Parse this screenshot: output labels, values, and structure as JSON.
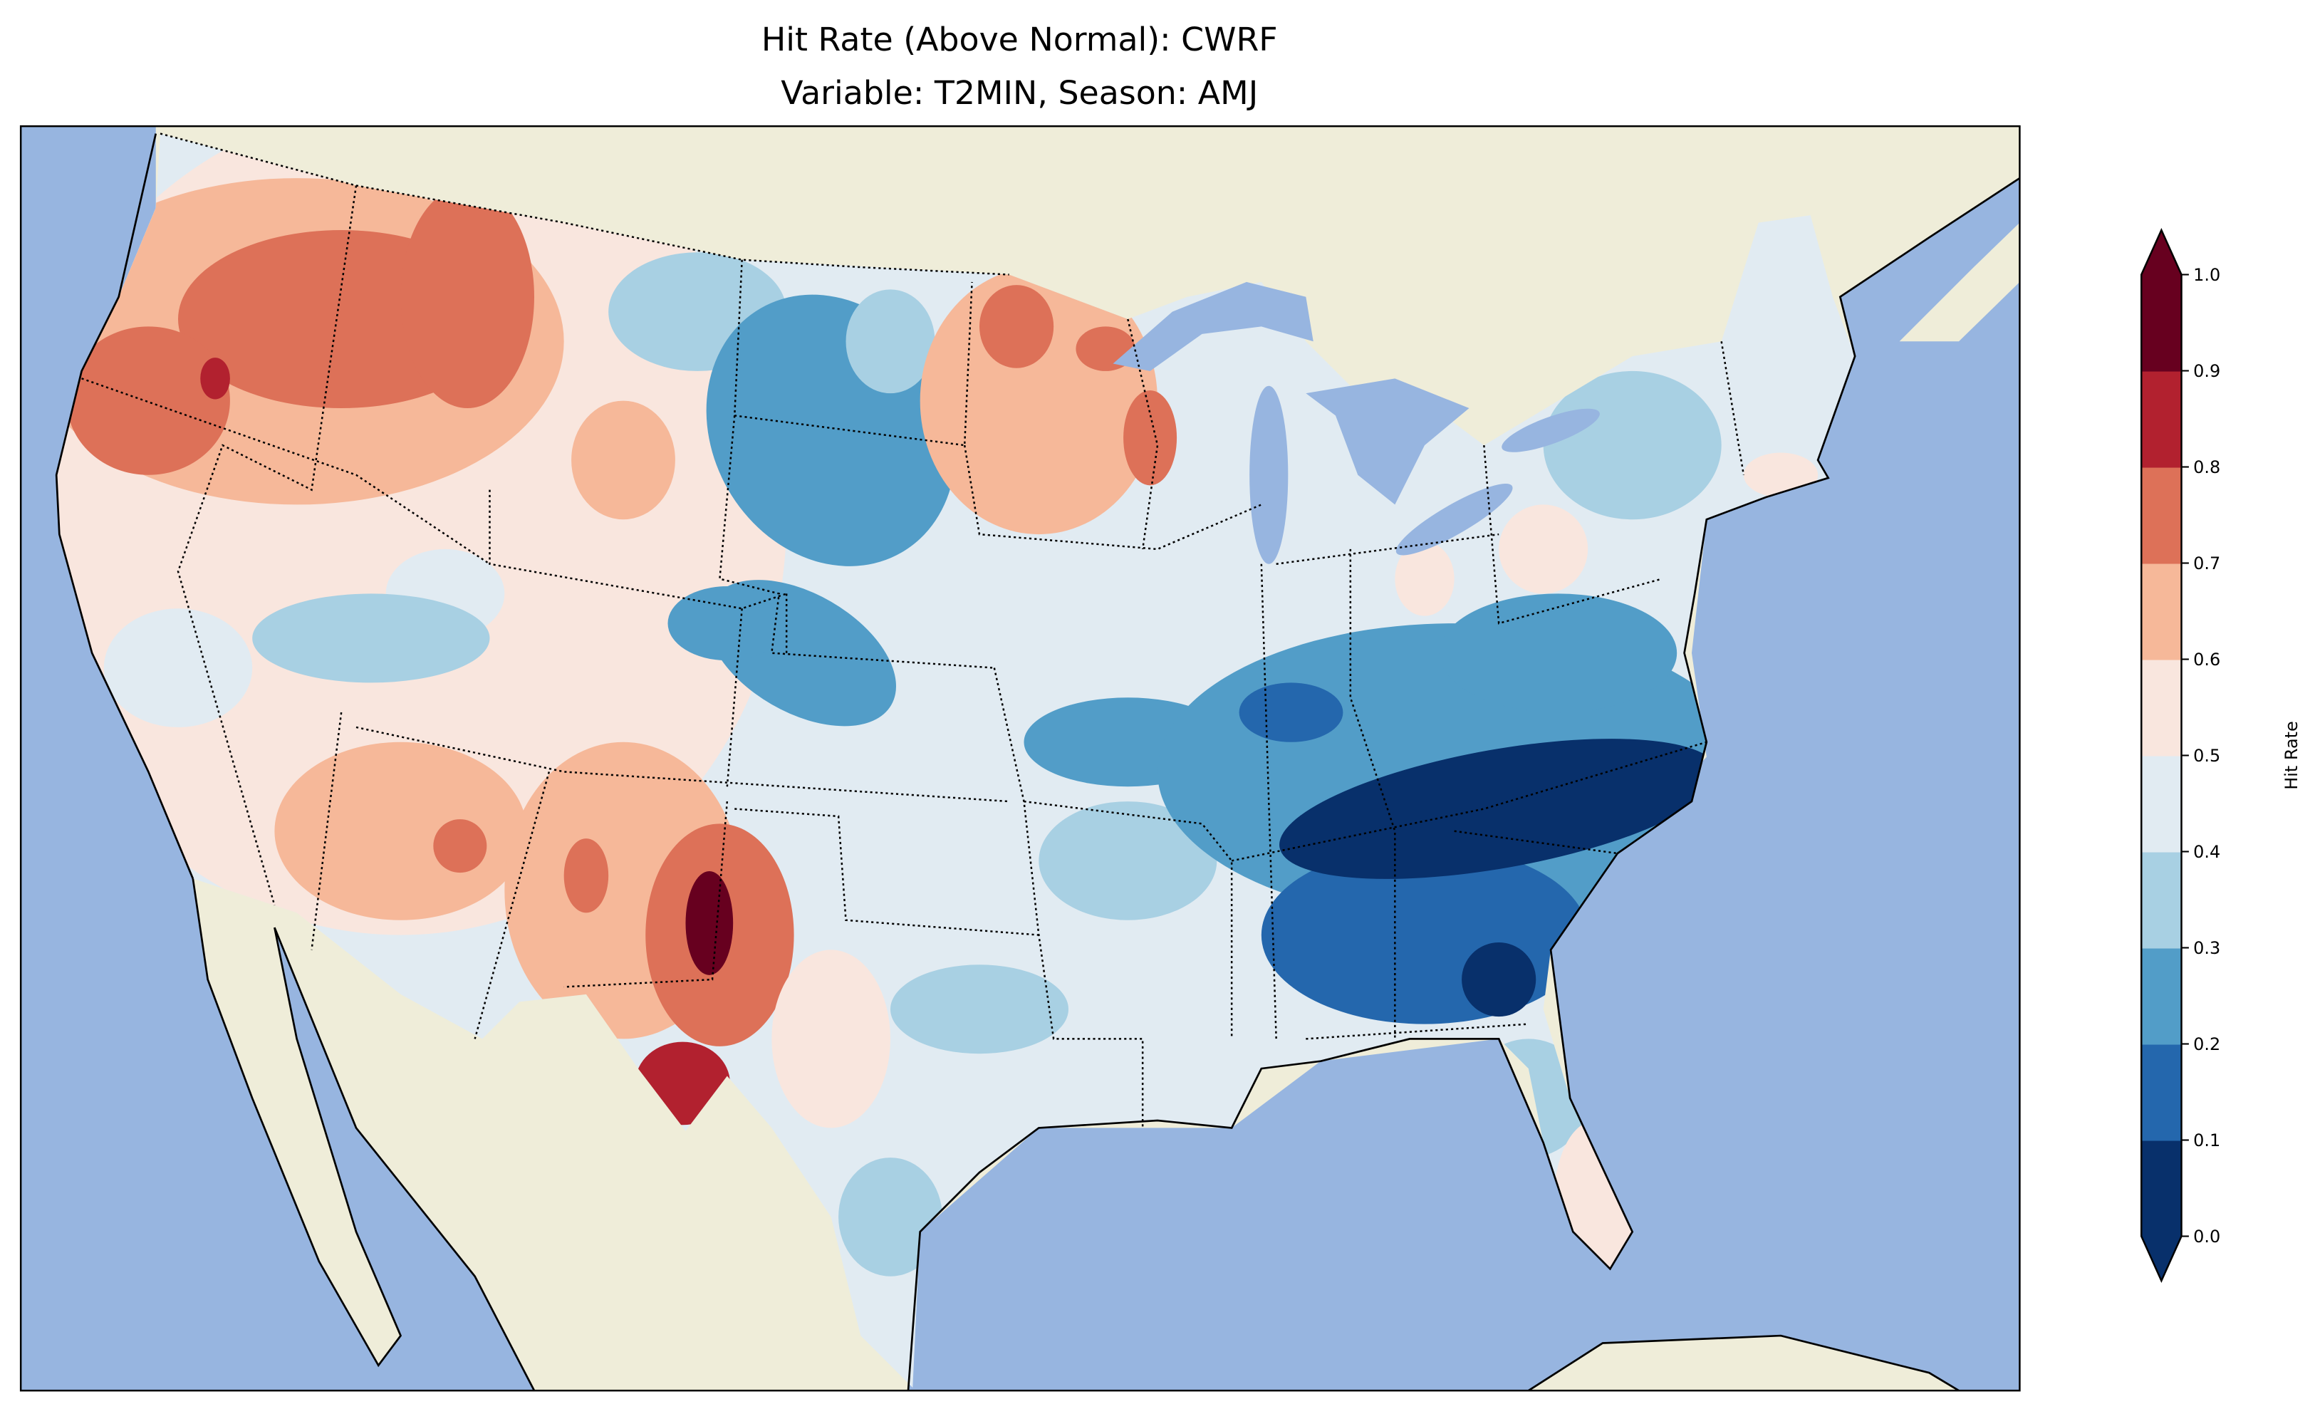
{
  "title": {
    "line1": "Hit Rate (Above Normal): CWRF",
    "line2": "Variable: T2MIN, Season: AMJ"
  },
  "map": {
    "ocean_color": "#97b5e0",
    "land_color": "#efedd9",
    "lake_color": "#97b5e0"
  },
  "colorbar": {
    "label": "Hit Rate",
    "ticks": [
      "0.0",
      "0.1",
      "0.2",
      "0.3",
      "0.4",
      "0.5",
      "0.6",
      "0.7",
      "0.8",
      "0.9",
      "1.0"
    ],
    "colors": [
      "#08306b",
      "#2467ad",
      "#529dc8",
      "#a8d0e3",
      "#e1ebf2",
      "#f9e6de",
      "#f6b899",
      "#dd7158",
      "#b2212f",
      "#67001f"
    ],
    "extend": "both"
  },
  "chart_data": {
    "type": "heatmap",
    "title": "Hit Rate (Above Normal): CWRF / Variable: T2MIN, Season: AMJ",
    "colorbar_label": "Hit Rate",
    "range": [
      0.0,
      1.0
    ],
    "levels": [
      0.0,
      0.1,
      0.2,
      0.3,
      0.4,
      0.5,
      0.6,
      0.7,
      0.8,
      0.9,
      1.0
    ],
    "legend_placement": "right",
    "regions": [
      {
        "region": "Pacific Northwest",
        "approx_hit_rate": 0.75
      },
      {
        "region": "Northern Plains",
        "approx_hit_rate": 0.25
      },
      {
        "region": "Upper Midwest",
        "approx_hit_rate": 0.65
      },
      {
        "region": "Southwest / New Mexico",
        "approx_hit_rate": 0.65
      },
      {
        "region": "West Texas peak",
        "approx_hit_rate": 0.95
      },
      {
        "region": "Southeast",
        "approx_hit_rate": 0.1
      },
      {
        "region": "Florida peninsula",
        "approx_hit_rate": 0.55
      },
      {
        "region": "Northeast",
        "approx_hit_rate": 0.4
      }
    ]
  }
}
